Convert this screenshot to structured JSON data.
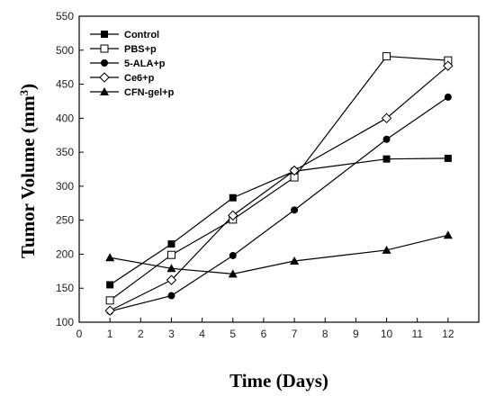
{
  "chart_data": {
    "type": "line",
    "xlabel": "Time (Days)",
    "ylabel": "Tumor Volume (mm",
    "ylabel_sup": "3",
    "ylabel_close": ")",
    "xlim": [
      0,
      13
    ],
    "ylim": [
      100,
      550
    ],
    "xticks": [
      0,
      1,
      2,
      3,
      4,
      5,
      6,
      7,
      8,
      9,
      10,
      11,
      12
    ],
    "yticks": [
      100,
      150,
      200,
      250,
      300,
      350,
      400,
      450,
      500,
      550
    ],
    "x": [
      1,
      3,
      5,
      7,
      10,
      12
    ],
    "grid": false,
    "legend_position": "top-left",
    "series": [
      {
        "name": "Control",
        "marker": "square-filled",
        "values": [
          155,
          215,
          283,
          322,
          340,
          341
        ]
      },
      {
        "name": "PBS+p",
        "marker": "square-open",
        "values": [
          132,
          199,
          251,
          313,
          491,
          485
        ]
      },
      {
        "name": "5-ALA+p",
        "marker": "circle-filled",
        "values": [
          116,
          139,
          198,
          265,
          369,
          431
        ]
      },
      {
        "name": "Ce6+p",
        "marker": "diamond-open",
        "values": [
          117,
          162,
          257,
          323,
          400,
          477
        ]
      },
      {
        "name": "CFN-gel+p",
        "marker": "triangle-filled",
        "values": [
          195,
          179,
          171,
          190,
          206,
          228
        ]
      }
    ]
  }
}
